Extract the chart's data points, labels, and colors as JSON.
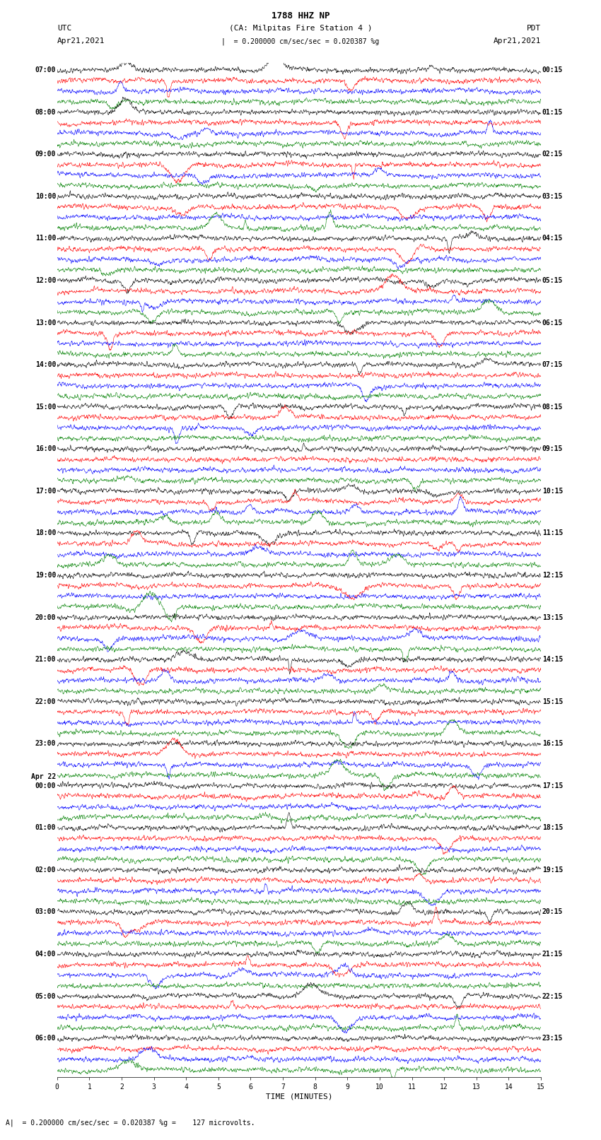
{
  "title_line1": "1788 HHZ NP",
  "title_line2": "(CA: Milpitas Fire Station 4 )",
  "scale_text": "= 0.200000 cm/sec/sec = 0.020387 %g",
  "bottom_note": "= 0.200000 cm/sec/sec = 0.020387 %g =    127 microvolts.",
  "utc_label": "UTC",
  "pdt_label": "PDT",
  "date_left": "Apr21,2021",
  "date_right": "Apr21,2021",
  "xlabel": "TIME (MINUTES)",
  "trace_colors_cycle": [
    "black",
    "red",
    "blue",
    "green"
  ],
  "n_traces": 96,
  "xmin": 0,
  "xmax": 15,
  "xticks": [
    0,
    1,
    2,
    3,
    4,
    5,
    6,
    7,
    8,
    9,
    10,
    11,
    12,
    13,
    14,
    15
  ],
  "left_time_labels": [
    "07:00",
    "",
    "",
    "",
    "08:00",
    "",
    "",
    "",
    "09:00",
    "",
    "",
    "",
    "10:00",
    "",
    "",
    "",
    "11:00",
    "",
    "",
    "",
    "12:00",
    "",
    "",
    "",
    "13:00",
    "",
    "",
    "",
    "14:00",
    "",
    "",
    "",
    "15:00",
    "",
    "",
    "",
    "16:00",
    "",
    "",
    "",
    "17:00",
    "",
    "",
    "",
    "18:00",
    "",
    "",
    "",
    "19:00",
    "",
    "",
    "",
    "20:00",
    "",
    "",
    "",
    "21:00",
    "",
    "",
    "",
    "22:00",
    "",
    "",
    "",
    "23:00",
    "",
    "",
    "",
    "00:00",
    "",
    "",
    "",
    "01:00",
    "",
    "",
    "",
    "02:00",
    "",
    "",
    "",
    "03:00",
    "",
    "",
    "",
    "04:00",
    "",
    "",
    "",
    "05:00",
    "",
    "",
    "",
    "06:00",
    "",
    "",
    ""
  ],
  "right_time_labels": [
    "00:15",
    "",
    "",
    "",
    "01:15",
    "",
    "",
    "",
    "02:15",
    "",
    "",
    "",
    "03:15",
    "",
    "",
    "",
    "04:15",
    "",
    "",
    "",
    "05:15",
    "",
    "",
    "",
    "06:15",
    "",
    "",
    "",
    "07:15",
    "",
    "",
    "",
    "08:15",
    "",
    "",
    "",
    "09:15",
    "",
    "",
    "",
    "10:15",
    "",
    "",
    "",
    "11:15",
    "",
    "",
    "",
    "12:15",
    "",
    "",
    "",
    "13:15",
    "",
    "",
    "",
    "14:15",
    "",
    "",
    "",
    "15:15",
    "",
    "",
    "",
    "16:15",
    "",
    "",
    "",
    "17:15",
    "",
    "",
    "",
    "18:15",
    "",
    "",
    "",
    "19:15",
    "",
    "",
    "",
    "20:15",
    "",
    "",
    "",
    "21:15",
    "",
    "",
    "",
    "22:15",
    "",
    "",
    "",
    "23:15",
    "",
    "",
    ""
  ],
  "date_change_trace": 68,
  "date_change_label": "Apr 22"
}
